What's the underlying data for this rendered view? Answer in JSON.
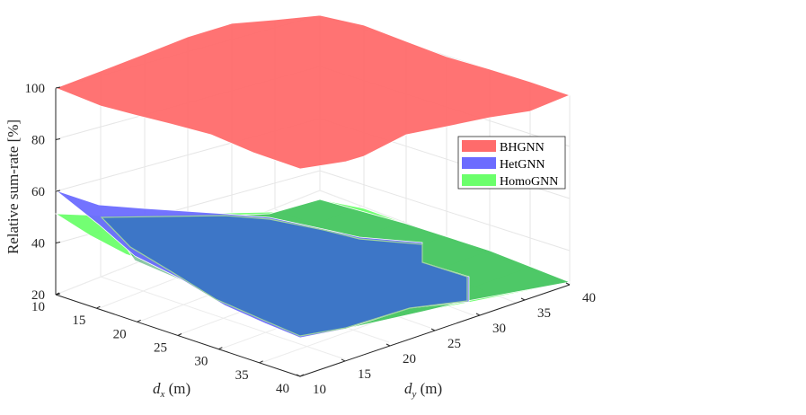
{
  "chart_data": {
    "type": "surface",
    "ylabel": "Relative sum-rate [%]",
    "xlabel": {
      "base": "d",
      "sub": "x",
      "unit": " (m)"
    },
    "ylabel_y": {
      "base": "d",
      "sub": "y",
      "unit": " (m)"
    },
    "zticks": [
      20,
      40,
      60,
      80,
      100
    ],
    "dx_ticks": [
      10,
      15,
      20,
      25,
      30,
      35,
      40
    ],
    "dy_ticks": [
      10,
      15,
      20,
      25,
      30,
      35,
      40
    ],
    "grid": true,
    "legend_position": "right",
    "series": [
      {
        "name": "BHGNN",
        "color": "#ff6b6b",
        "edge": "#ffffff",
        "corners": {
          "d10_10": 100,
          "d40_10": 68,
          "d10_40": 100,
          "d40_40": 96,
          "top": 100
        }
      },
      {
        "name": "HetGNN",
        "color": "#6b6bff",
        "edge": "#ffffff",
        "corners": {
          "d10_10": 60,
          "d40_10": 20,
          "d10_40": 48,
          "d40_40": 23
        }
      },
      {
        "name": "HomoGNN",
        "color": "#6bff6b",
        "edge": "#ffffff",
        "corners": {
          "d10_10": 51,
          "d40_10": 20,
          "d10_40": 51,
          "d40_40": 25
        }
      }
    ]
  }
}
